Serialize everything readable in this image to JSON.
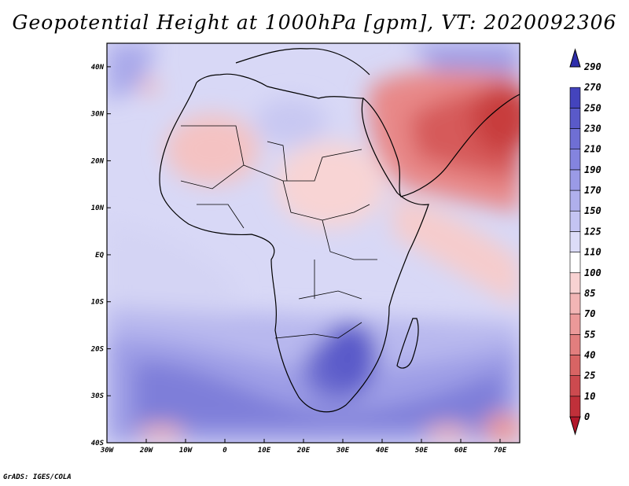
{
  "title": "Geopotential Height at 1000hPa [gpm], VT: 2020092306",
  "credit": "GrADS: IGES/COLA",
  "map": {
    "lon_range": [
      -30,
      75
    ],
    "lat_range": [
      -40,
      45
    ],
    "x_ticks": [
      "30W",
      "20W",
      "10W",
      "0",
      "10E",
      "20E",
      "30E",
      "40E",
      "50E",
      "60E",
      "70E"
    ],
    "y_ticks": [
      "40S",
      "30S",
      "20S",
      "10S",
      "EQ",
      "10N",
      "20N",
      "30N",
      "40N"
    ]
  },
  "colorbar": {
    "levels": [
      "0",
      "10",
      "25",
      "40",
      "55",
      "70",
      "85",
      "100",
      "110",
      "125",
      "150",
      "170",
      "190",
      "210",
      "230",
      "250",
      "270",
      "290"
    ],
    "colors": [
      "#b2182b",
      "#c0303a",
      "#cc4a4f",
      "#d86464",
      "#e27e7e",
      "#eb9999",
      "#f2b5b5",
      "#f8d2d2",
      "#ffffff",
      "#dcdcf8",
      "#c4c4f2",
      "#afafec",
      "#9a9ae6",
      "#8484de",
      "#6f6fd4",
      "#5a5ac9",
      "#4444bd",
      "#2e2eab"
    ]
  },
  "chart_data": {
    "type": "heatmap",
    "title": "Geopotential Height at 1000hPa [gpm], VT: 2020092306",
    "xlim": [
      -30,
      75
    ],
    "ylim": [
      -40,
      45
    ],
    "x_ticks": [
      "30W",
      "20W",
      "10W",
      "0",
      "10E",
      "20E",
      "30E",
      "40E",
      "50E",
      "60E",
      "70E"
    ],
    "y_ticks": [
      "40S",
      "30S",
      "20S",
      "10S",
      "EQ",
      "10N",
      "20N",
      "30N",
      "40N"
    ],
    "color_levels": [
      0,
      10,
      25,
      40,
      55,
      70,
      85,
      100,
      110,
      125,
      150,
      170,
      190,
      210,
      230,
      250,
      270,
      290
    ],
    "units": "gpm"
  }
}
